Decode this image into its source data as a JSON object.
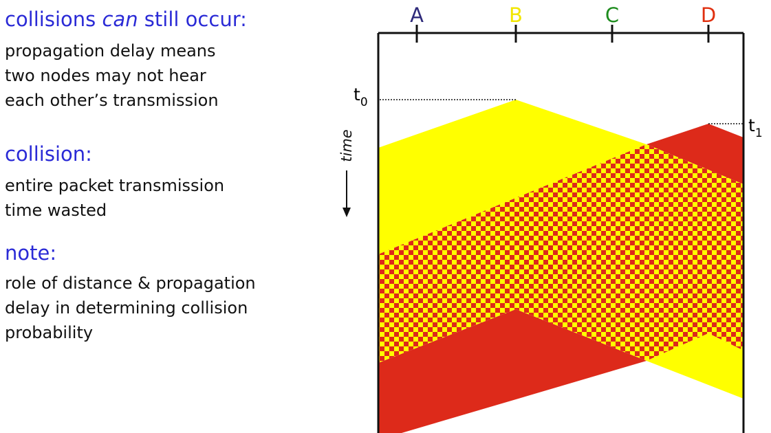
{
  "text": {
    "heading1_pre": "collisions ",
    "heading1_em": "can",
    "heading1_post": " still occur:",
    "para1": [
      "propagation delay means",
      "two nodes may not hear",
      "each other’s transmission"
    ],
    "heading2": "collision:",
    "para2": [
      "entire packet transmission",
      "time wasted"
    ],
    "heading3": "note:",
    "para3": [
      "role of distance & propagation",
      "delay in determining collision",
      "probability"
    ]
  },
  "diagram": {
    "nodes": [
      {
        "label": "A",
        "color": "#2e2a7a"
      },
      {
        "label": "B",
        "color": "#f2e600"
      },
      {
        "label": "C",
        "color": "#1e8c1e"
      },
      {
        "label": "D",
        "color": "#e03010"
      }
    ],
    "time_axis_label": "time",
    "t0": {
      "base": "t",
      "sub": "0"
    },
    "t1": {
      "base": "t",
      "sub": "1"
    },
    "colors": {
      "yellow": "#ffff00",
      "red": "#dd2a1a",
      "line": "#111111"
    }
  }
}
